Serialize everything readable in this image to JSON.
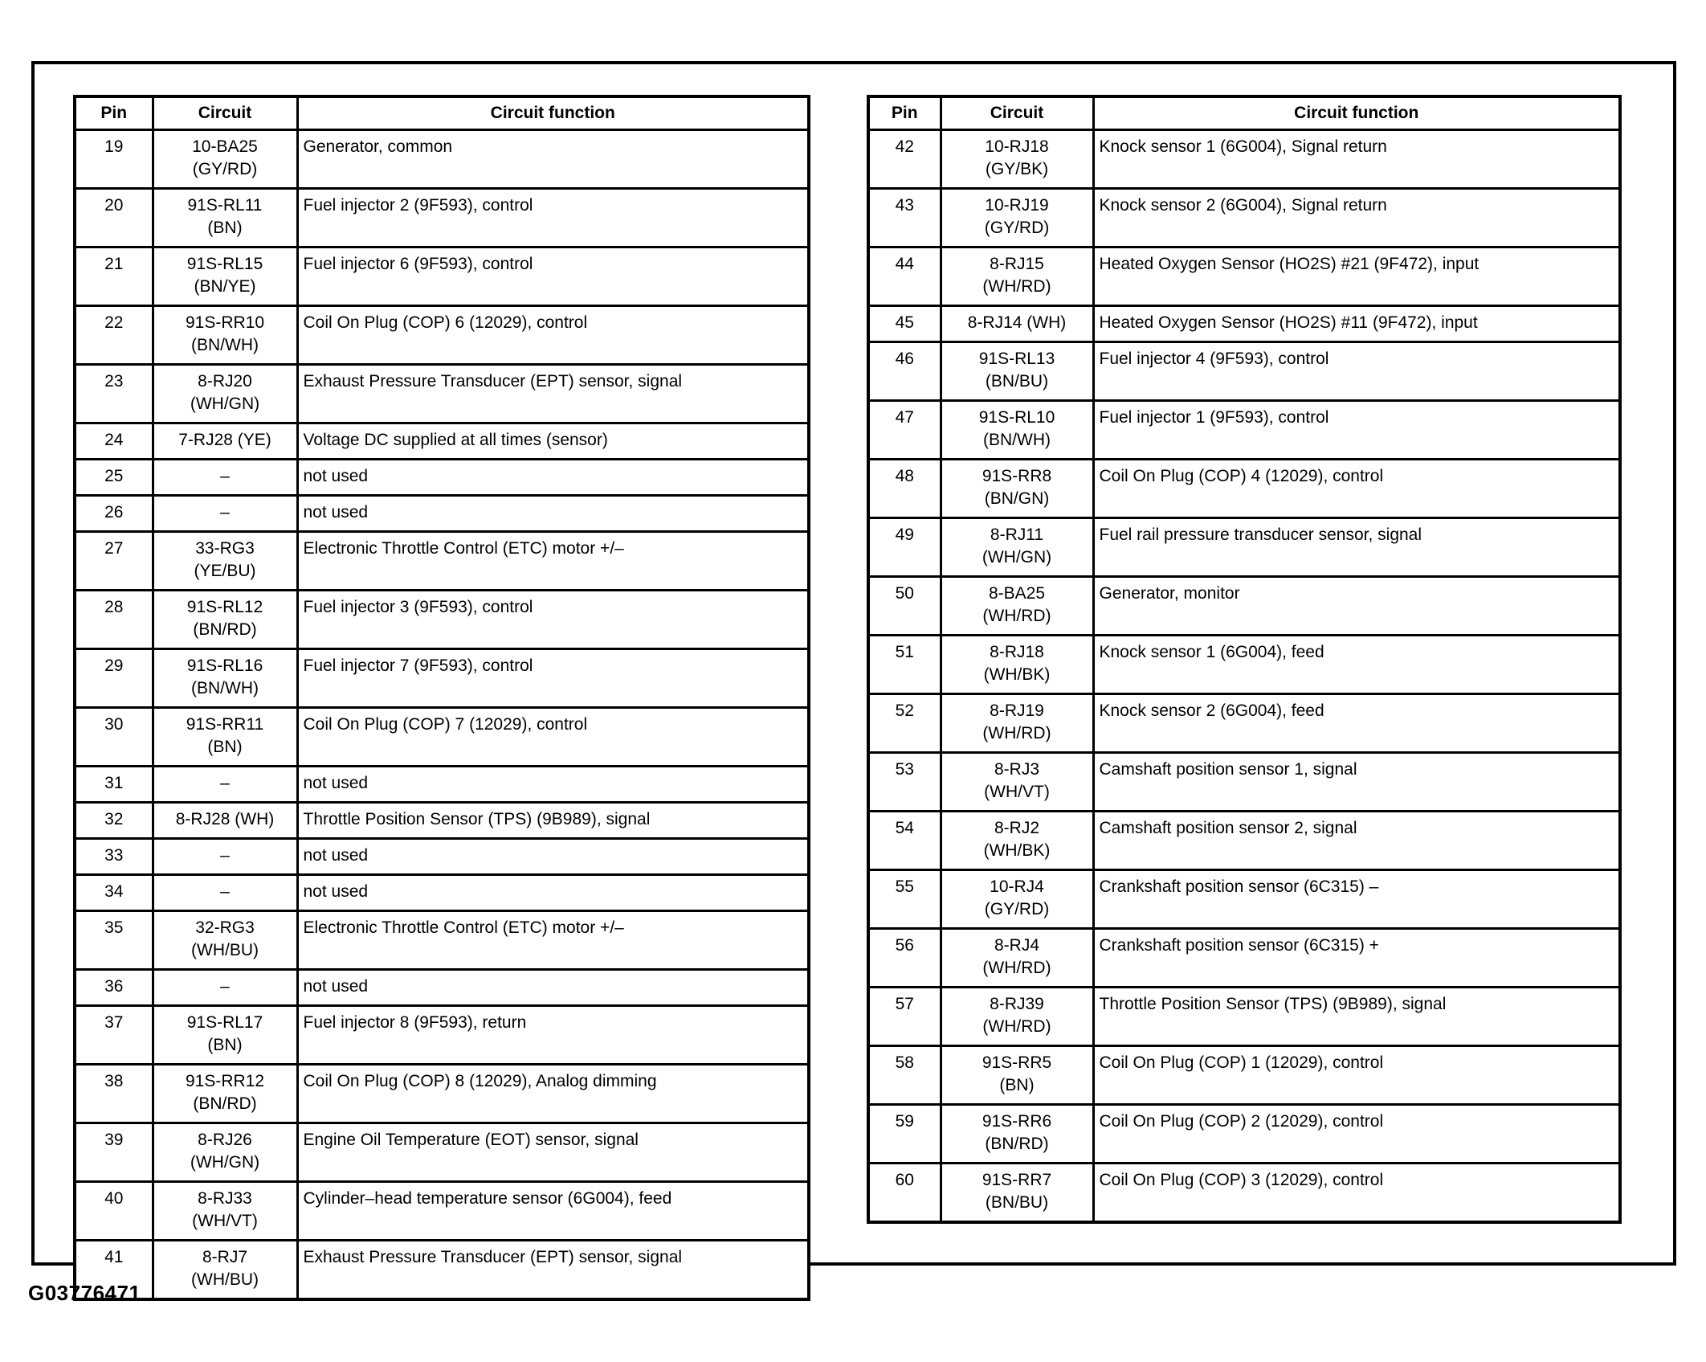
{
  "figure_id": "G03776471",
  "tables": [
    {
      "headers": {
        "pin": "Pin",
        "circuit": "Circuit",
        "function": "Circuit function"
      },
      "rows": [
        {
          "pin": "19",
          "circuit": "10-BA25\n(GY/RD)",
          "func": "Generator, common"
        },
        {
          "pin": "20",
          "circuit": "91S-RL11\n(BN)",
          "func": "Fuel injector 2 (9F593), control"
        },
        {
          "pin": "21",
          "circuit": "91S-RL15\n(BN/YE)",
          "func": "Fuel injector 6 (9F593), control"
        },
        {
          "pin": "22",
          "circuit": "91S-RR10\n(BN/WH)",
          "func": "Coil On Plug (COP) 6 (12029), control"
        },
        {
          "pin": "23",
          "circuit": "8-RJ20\n(WH/GN)",
          "func": "Exhaust Pressure Transducer (EPT) sensor, signal"
        },
        {
          "pin": "24",
          "circuit": "7-RJ28 (YE)",
          "func": "Voltage DC supplied at all times (sensor)"
        },
        {
          "pin": "25",
          "circuit": "–",
          "func": "not used"
        },
        {
          "pin": "26",
          "circuit": "–",
          "func": "not used"
        },
        {
          "pin": "27",
          "circuit": "33-RG3\n(YE/BU)",
          "func": "Electronic Throttle Control (ETC) motor +/–"
        },
        {
          "pin": "28",
          "circuit": "91S-RL12\n(BN/RD)",
          "func": "Fuel injector 3 (9F593), control"
        },
        {
          "pin": "29",
          "circuit": "91S-RL16\n(BN/WH)",
          "func": "Fuel injector 7 (9F593), control"
        },
        {
          "pin": "30",
          "circuit": "91S-RR11\n(BN)",
          "func": "Coil On Plug (COP) 7 (12029), control"
        },
        {
          "pin": "31",
          "circuit": "–",
          "func": "not used"
        },
        {
          "pin": "32",
          "circuit": "8-RJ28 (WH)",
          "func": "Throttle Position Sensor (TPS) (9B989), signal"
        },
        {
          "pin": "33",
          "circuit": "–",
          "func": "not used"
        },
        {
          "pin": "34",
          "circuit": "–",
          "func": "not used"
        },
        {
          "pin": "35",
          "circuit": "32-RG3\n(WH/BU)",
          "func": "Electronic Throttle Control (ETC) motor +/–"
        },
        {
          "pin": "36",
          "circuit": "–",
          "func": "not used"
        },
        {
          "pin": "37",
          "circuit": "91S-RL17\n(BN)",
          "func": "Fuel injector 8 (9F593), return"
        },
        {
          "pin": "38",
          "circuit": "91S-RR12\n(BN/RD)",
          "func": "Coil On Plug (COP) 8 (12029), Analog dimming"
        },
        {
          "pin": "39",
          "circuit": "8-RJ26\n(WH/GN)",
          "func": "Engine Oil Temperature (EOT) sensor, signal"
        },
        {
          "pin": "40",
          "circuit": "8-RJ33\n(WH/VT)",
          "func": "Cylinder–head temperature sensor (6G004), feed"
        },
        {
          "pin": "41",
          "circuit": "8-RJ7\n(WH/BU)",
          "func": "Exhaust Pressure Transducer (EPT) sensor, signal"
        }
      ]
    },
    {
      "headers": {
        "pin": "Pin",
        "circuit": "Circuit",
        "function": "Circuit function"
      },
      "rows": [
        {
          "pin": "42",
          "circuit": "10-RJ18\n(GY/BK)",
          "func": "Knock sensor 1 (6G004), Signal return"
        },
        {
          "pin": "43",
          "circuit": "10-RJ19\n(GY/RD)",
          "func": "Knock sensor 2 (6G004), Signal return"
        },
        {
          "pin": "44",
          "circuit": "8-RJ15\n(WH/RD)",
          "func": "Heated Oxygen Sensor (HO2S) #21 (9F472), input"
        },
        {
          "pin": "45",
          "circuit": "8-RJ14 (WH)",
          "func": "Heated Oxygen Sensor (HO2S) #11 (9F472), input"
        },
        {
          "pin": "46",
          "circuit": "91S-RL13\n(BN/BU)",
          "func": "Fuel injector 4 (9F593), control"
        },
        {
          "pin": "47",
          "circuit": "91S-RL10\n(BN/WH)",
          "func": "Fuel injector 1 (9F593), control"
        },
        {
          "pin": "48",
          "circuit": "91S-RR8\n(BN/GN)",
          "func": "Coil On Plug (COP) 4 (12029), control"
        },
        {
          "pin": "49",
          "circuit": "8-RJ11\n(WH/GN)",
          "func": "Fuel rail pressure transducer sensor, signal"
        },
        {
          "pin": "50",
          "circuit": "8-BA25\n(WH/RD)",
          "func": "Generator, monitor"
        },
        {
          "pin": "51",
          "circuit": "8-RJ18\n(WH/BK)",
          "func": "Knock sensor 1 (6G004), feed"
        },
        {
          "pin": "52",
          "circuit": "8-RJ19\n(WH/RD)",
          "func": "Knock sensor 2 (6G004), feed"
        },
        {
          "pin": "53",
          "circuit": "8-RJ3\n(WH/VT)",
          "func": "Camshaft position sensor 1, signal"
        },
        {
          "pin": "54",
          "circuit": "8-RJ2\n(WH/BK)",
          "func": "Camshaft position sensor 2, signal"
        },
        {
          "pin": "55",
          "circuit": "10-RJ4\n(GY/RD)",
          "func": "Crankshaft position sensor (6C315) –"
        },
        {
          "pin": "56",
          "circuit": "8-RJ4\n(WH/RD)",
          "func": "Crankshaft position sensor (6C315) +"
        },
        {
          "pin": "57",
          "circuit": "8-RJ39\n(WH/RD)",
          "func": "Throttle Position Sensor (TPS) (9B989), signal"
        },
        {
          "pin": "58",
          "circuit": "91S-RR5\n(BN)",
          "func": "Coil On Plug (COP) 1 (12029), control"
        },
        {
          "pin": "59",
          "circuit": "91S-RR6\n(BN/RD)",
          "func": "Coil On Plug (COP) 2 (12029), control"
        },
        {
          "pin": "60",
          "circuit": "91S-RR7\n(BN/BU)",
          "func": "Coil On Plug (COP) 3 (12029), control"
        }
      ]
    }
  ]
}
